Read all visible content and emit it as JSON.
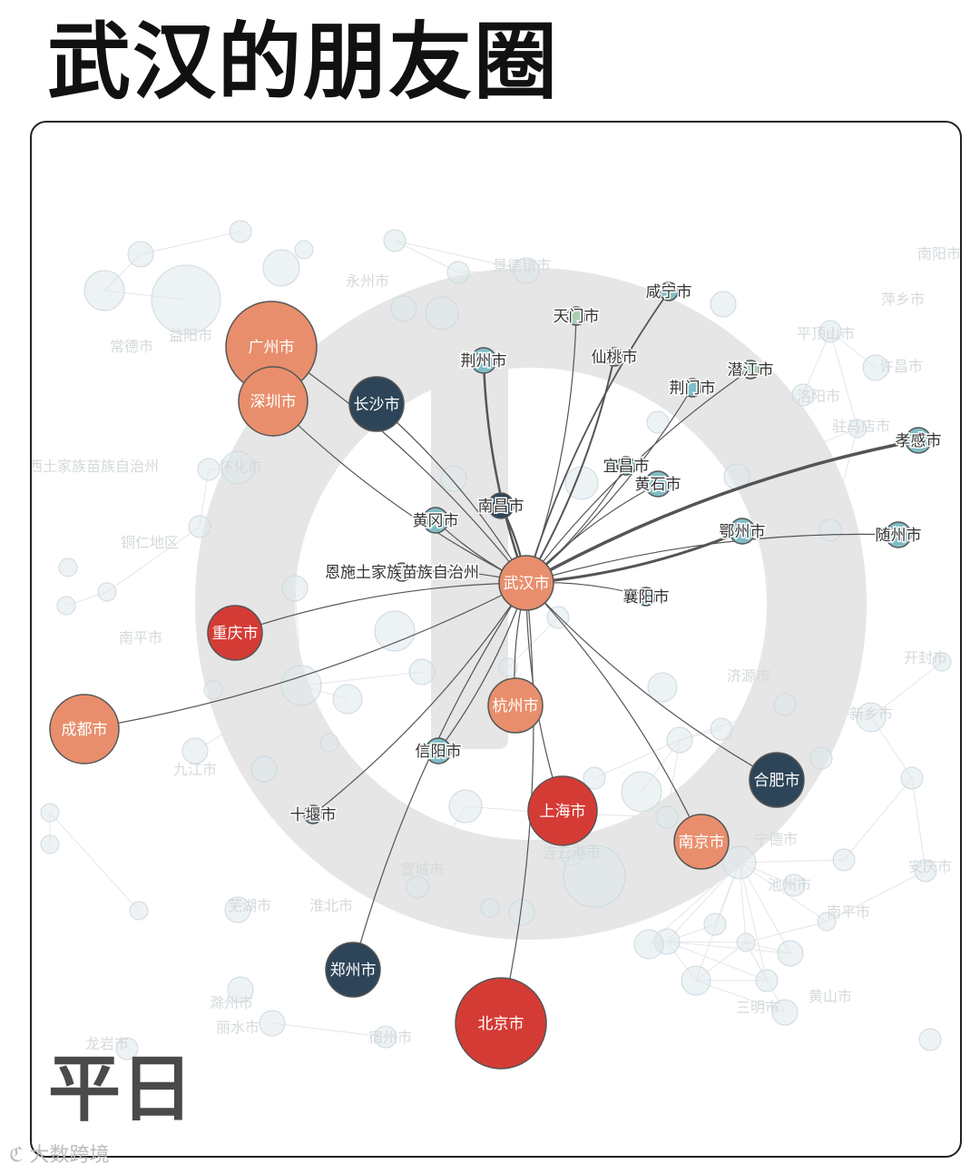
{
  "title": "武汉的朋友圈",
  "caption": "平日",
  "watermark": "大数跨境",
  "colors": {
    "background_node": "#dfe7ec",
    "background_edge": "#e6e6e6",
    "edge": "#555555",
    "dark": "#2e4559",
    "orange": "#e88e6c",
    "red": "#d53b35",
    "teal": "#7fbdc6",
    "green": "#a9d0b4"
  },
  "center": {
    "name": "武汉市",
    "color": "orange"
  },
  "nodes": [
    {
      "name": "广州市",
      "color": "orange",
      "size": "xl"
    },
    {
      "name": "深圳市",
      "color": "orange",
      "size": "l"
    },
    {
      "name": "长沙市",
      "color": "dark",
      "size": "m"
    },
    {
      "name": "荆州市",
      "color": "teal",
      "size": "s"
    },
    {
      "name": "天门市",
      "color": "green",
      "size": "xs"
    },
    {
      "name": "咸宁市",
      "color": "teal",
      "size": "xs"
    },
    {
      "name": "仙桃市",
      "color": "green",
      "size": "xs"
    },
    {
      "name": "潜江市",
      "color": "green",
      "size": "xs"
    },
    {
      "name": "荆门市",
      "color": "teal",
      "size": "xs"
    },
    {
      "name": "孝感市",
      "color": "teal",
      "size": "s"
    },
    {
      "name": "宜昌市",
      "color": "teal",
      "size": "xs"
    },
    {
      "name": "黄石市",
      "color": "teal",
      "size": "s"
    },
    {
      "name": "南昌市",
      "color": "dark",
      "size": "s"
    },
    {
      "name": "黄冈市",
      "color": "teal",
      "size": "s"
    },
    {
      "name": "鄂州市",
      "color": "teal",
      "size": "s"
    },
    {
      "name": "随州市",
      "color": "teal",
      "size": "s"
    },
    {
      "name": "恩施土家族苗族自治州",
      "color": "green",
      "size": "xs"
    },
    {
      "name": "襄阳市",
      "color": "teal",
      "size": "xs"
    },
    {
      "name": "重庆市",
      "color": "red",
      "size": "m"
    },
    {
      "name": "成都市",
      "color": "orange",
      "size": "l"
    },
    {
      "name": "杭州市",
      "color": "orange",
      "size": "m"
    },
    {
      "name": "信阳市",
      "color": "teal",
      "size": "s"
    },
    {
      "name": "合肥市",
      "color": "dark",
      "size": "m"
    },
    {
      "name": "十堰市",
      "color": "teal",
      "size": "xs"
    },
    {
      "name": "上海市",
      "color": "red",
      "size": "l"
    },
    {
      "name": "南京市",
      "color": "orange",
      "size": "m"
    },
    {
      "name": "郑州市",
      "color": "dark",
      "size": "m"
    },
    {
      "name": "北京市",
      "color": "red",
      "size": "xl"
    }
  ],
  "background_labels": [
    "常德市",
    "益阳市",
    "永州市",
    "湘西土家族苗族自治州",
    "怀化市",
    "铜仁地区",
    "南平市",
    "九江市",
    "景德镇市",
    "南阳市",
    "平顶山市",
    "许昌市",
    "洛阳市",
    "驻马店市",
    "济源市",
    "新乡市",
    "开封市",
    "安庆市",
    "池州市",
    "芜湖市",
    "黄山市",
    "宣城市",
    "连云港市",
    "滁州市",
    "淮北市",
    "宿州市",
    "丽水市",
    "三明市",
    "龙岩市",
    "萍乡市",
    "宁德市",
    "南平市"
  ]
}
